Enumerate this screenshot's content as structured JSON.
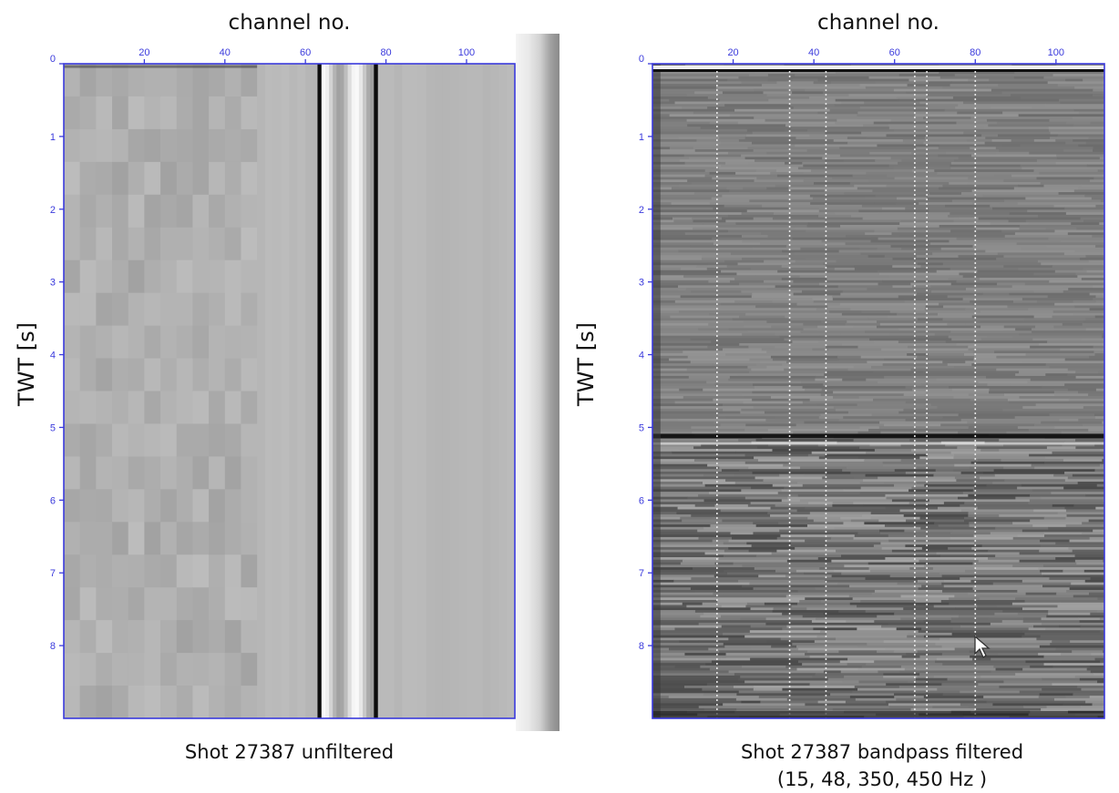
{
  "colors": {
    "axis": "#3a3adc",
    "background_left": "#bdbdbd",
    "background_right": "#7f7f7f"
  },
  "chart_data": [
    {
      "type": "heatmap",
      "title": "",
      "caption_lines": [
        "Shot 27387 unfiltered"
      ],
      "xlabel": "channel no.",
      "ylabel": "TWT [s]",
      "xlim": [
        0,
        112
      ],
      "ylim": [
        9,
        0
      ],
      "x_ticks": [
        "20",
        "40",
        "60",
        "80",
        "100"
      ],
      "y_ticks": [
        "0",
        "1",
        "2",
        "3",
        "4",
        "5",
        "6",
        "7",
        "8"
      ],
      "x_axis_position": "top",
      "grid": false,
      "strong_traces": [
        {
          "from_channel": 63,
          "to_channel": 64,
          "intensity": "black"
        },
        {
          "from_channel": 64,
          "to_channel": 77,
          "intensity": "white-band"
        },
        {
          "from_channel": 77,
          "to_channel": 78,
          "intensity": "black"
        }
      ],
      "low_amplitude_region": {
        "from_channel": 48,
        "to_channel": 112
      }
    },
    {
      "type": "heatmap",
      "title": "",
      "caption_lines": [
        "Shot 27387 bandpass filtered",
        "(15, 48, 350, 450 Hz )"
      ],
      "xlabel": "channel no.",
      "ylabel": "TWT [s]",
      "xlim": [
        0,
        112
      ],
      "ylim": [
        9,
        0
      ],
      "x_ticks": [
        "20",
        "40",
        "60",
        "80",
        "100"
      ],
      "y_ticks": [
        "0",
        "1",
        "2",
        "3",
        "4",
        "5",
        "6",
        "7",
        "8"
      ],
      "x_axis_position": "top",
      "grid": false,
      "strong_reflection_twt": 5.1,
      "dotted_channels": [
        16,
        34,
        43,
        65,
        68,
        80
      ]
    }
  ]
}
